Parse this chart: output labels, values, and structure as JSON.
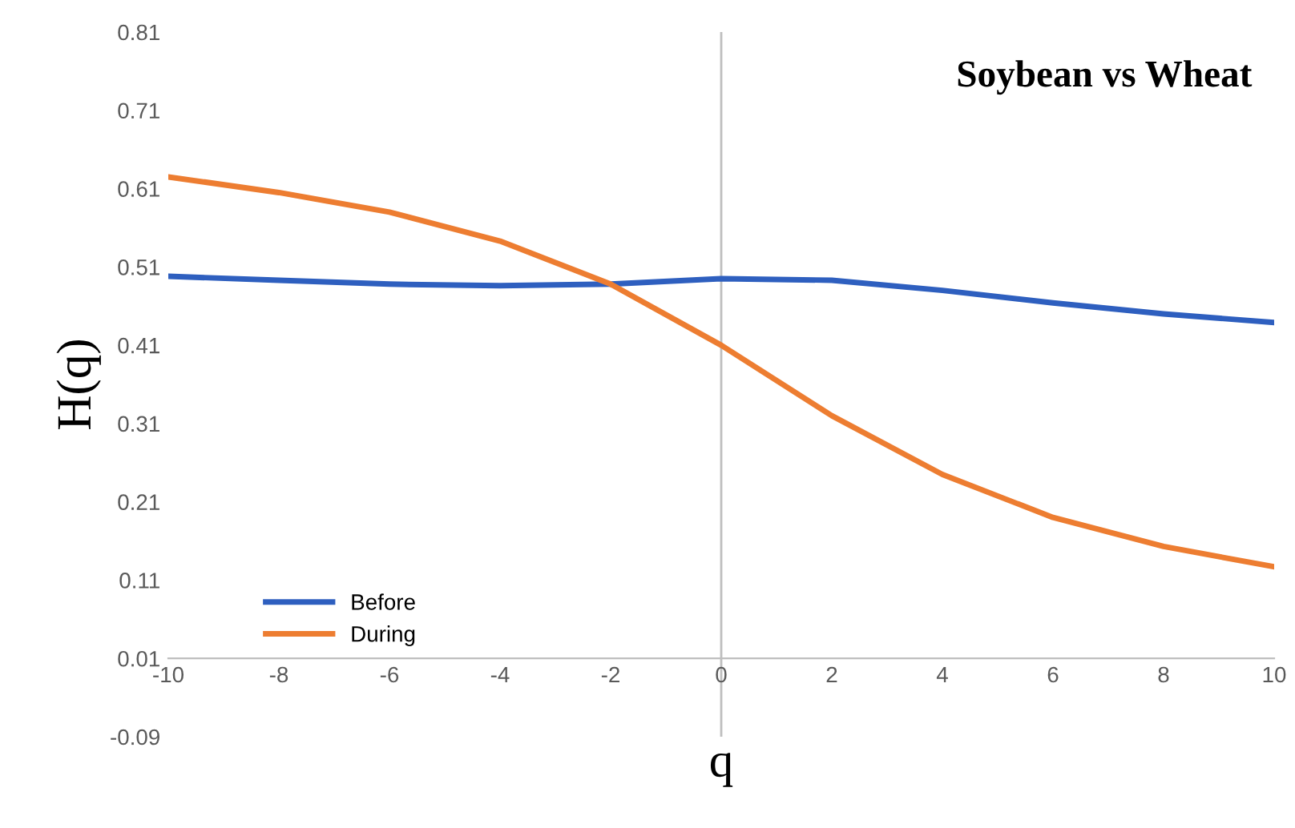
{
  "chart_data": {
    "type": "line",
    "title": "Soybean vs Wheat",
    "xlabel": "q",
    "ylabel": "H(q)",
    "x": [
      -10,
      -8,
      -6,
      -4,
      -2,
      0,
      2,
      4,
      6,
      8,
      10
    ],
    "series": [
      {
        "name": "Before",
        "color": "#2e5fbf",
        "values": [
          0.498,
          0.493,
          0.488,
          0.486,
          0.488,
          0.495,
          0.493,
          0.48,
          0.464,
          0.45,
          0.439
        ]
      },
      {
        "name": "During",
        "color": "#ed7d31",
        "values": [
          0.625,
          0.605,
          0.58,
          0.543,
          0.488,
          0.41,
          0.32,
          0.245,
          0.19,
          0.153,
          0.127
        ]
      }
    ],
    "xlim": [
      -10,
      10
    ],
    "xticks": [
      -10,
      -8,
      -6,
      -4,
      -2,
      0,
      2,
      4,
      6,
      8,
      10
    ],
    "ylim": [
      -0.09,
      0.81
    ],
    "yticks": [
      -0.09,
      0.01,
      0.11,
      0.21,
      0.31,
      0.41,
      0.51,
      0.61,
      0.71,
      0.81
    ],
    "ref_lines": [
      {
        "axis": "x",
        "value": 0,
        "color": "#bfbfbf"
      }
    ],
    "grid": false,
    "legend": "bottom left",
    "marker": "none",
    "line_style": "solid"
  }
}
